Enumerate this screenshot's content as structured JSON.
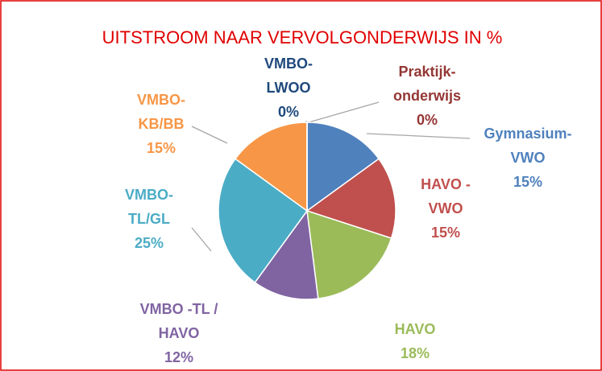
{
  "chart_data": {
    "type": "pie",
    "title": "UITSTROOM NAAR VERVOLGONDERWIJS IN %",
    "categories": [
      [
        "Gymnasium-",
        "VWO"
      ],
      [
        "HAVO -",
        "VWO"
      ],
      [
        "HAVO"
      ],
      [
        "VMBO -TL /",
        "HAVO"
      ],
      [
        "VMBO-",
        "TL/GL"
      ],
      [
        "VMBO-",
        "KB/BB"
      ],
      [
        "VMBO-",
        "LWOO"
      ],
      [
        "Praktijk-",
        "onderwijs"
      ]
    ],
    "values": [
      15,
      15,
      18,
      12,
      25,
      15,
      0,
      0
    ],
    "value_labels": [
      "15%",
      "15%",
      "18%",
      "12%",
      "25%",
      "15%",
      "0%",
      "0%"
    ],
    "colors": [
      "#4f81bd",
      "#c0504d",
      "#9bbb59",
      "#8064a2",
      "#4bacc6",
      "#f79646",
      "#1f497d",
      "#943634"
    ]
  }
}
